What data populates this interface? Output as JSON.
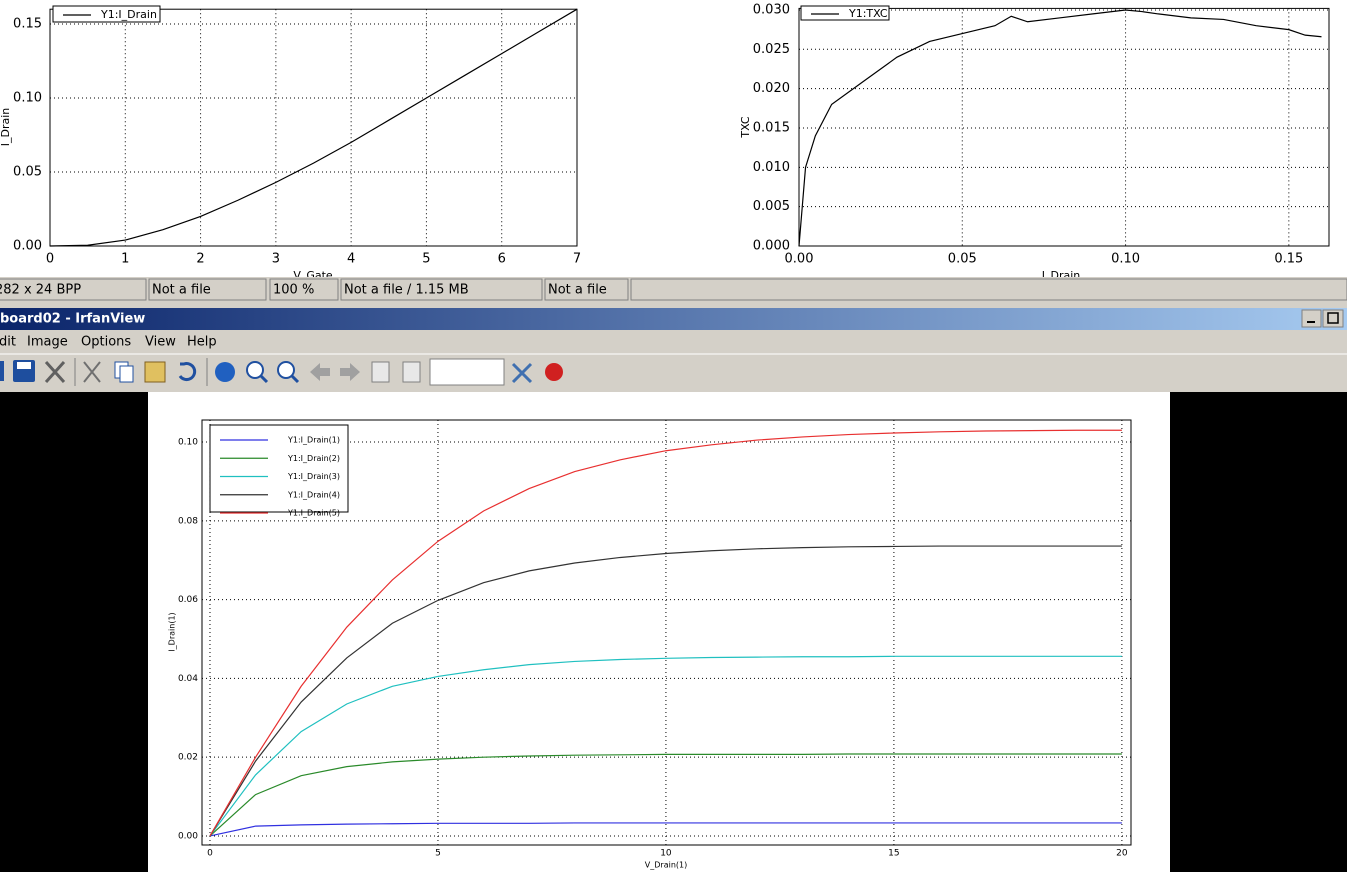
{
  "chart_data": [
    {
      "type": "line",
      "x_label": "V_Gate",
      "y_label": "I_Drain",
      "x": [
        0,
        0.5,
        1,
        1.5,
        2,
        2.5,
        3,
        3.5,
        4,
        4.5,
        5,
        5.5,
        6,
        6.5,
        7
      ],
      "series": [
        {
          "name": "Y1:I_Drain",
          "color": "#000000",
          "values": [
            0,
            0.0005,
            0.004,
            0.011,
            0.02,
            0.031,
            0.043,
            0.056,
            0.07,
            0.085,
            0.1,
            0.115,
            0.13,
            0.145,
            0.16
          ]
        }
      ],
      "xlim": [
        0,
        7
      ],
      "ylim": [
        0,
        0.16
      ],
      "xticks": [
        0,
        1,
        2,
        3,
        4,
        5,
        6,
        7
      ],
      "yticks": [
        {
          "value": 0,
          "label": "0.00"
        },
        {
          "value": 0.05,
          "label": "0.05"
        },
        {
          "value": 0.1,
          "label": "0.10"
        },
        {
          "value": 0.15,
          "label": "0.15"
        }
      ],
      "grid": true,
      "legend": "upper left"
    },
    {
      "type": "line",
      "x_label": "I_Drain",
      "y_label": "TXC",
      "x": [
        0,
        0.002,
        0.005,
        0.01,
        0.02,
        0.03,
        0.04,
        0.05,
        0.06,
        0.065,
        0.07,
        0.08,
        0.09,
        0.1,
        0.105,
        0.11,
        0.12,
        0.13,
        0.14,
        0.15,
        0.155,
        0.16
      ],
      "series": [
        {
          "name": "Y1:TXC",
          "color": "#000000",
          "values": [
            0,
            0.01,
            0.014,
            0.018,
            0.021,
            0.024,
            0.026,
            0.027,
            0.028,
            0.0292,
            0.0285,
            0.029,
            0.0295,
            0.03,
            0.0298,
            0.0295,
            0.029,
            0.0288,
            0.028,
            0.0275,
            0.0268,
            0.0266
          ]
        }
      ],
      "xlim": [
        0,
        0.1623
      ],
      "ylim": [
        0,
        0.0302
      ],
      "xticks": [
        {
          "value": 0,
          "label": "0.00"
        },
        0.05,
        {
          "value": 0.1,
          "label": "0.10"
        },
        0.15
      ],
      "yticks": [
        {
          "value": 0,
          "label": "0.000"
        },
        0.005,
        {
          "value": 0.01,
          "label": "0.010"
        },
        0.015,
        {
          "value": 0.02,
          "label": "0.020"
        },
        0.025,
        {
          "value": 0.03,
          "label": "0.030"
        }
      ],
      "grid": true,
      "legend": "upper left"
    },
    {
      "type": "line",
      "x_label": "V_Drain(1)",
      "y_label": "I_Drain(1)",
      "x": [
        0,
        1,
        2,
        3,
        4,
        5,
        6,
        7,
        8,
        9,
        10,
        11,
        12,
        13,
        14,
        15,
        16,
        17,
        18,
        19,
        20
      ],
      "series": [
        {
          "name": "Y1:I_Drain(1)",
          "color": "#3030e0",
          "values": [
            0,
            0.0025,
            0.0028,
            0.003,
            0.0031,
            0.0032,
            0.0032,
            0.0032,
            0.0033,
            0.0033,
            0.0033,
            0.0033,
            0.0033,
            0.0033,
            0.0033,
            0.0033,
            0.0033,
            0.0033,
            0.0033,
            0.0033,
            0.0033
          ]
        },
        {
          "name": "Y1:I_Drain(2)",
          "color": "#2a8a2a",
          "values": [
            0,
            0.0105,
            0.0153,
            0.0176,
            0.0188,
            0.0195,
            0.02,
            0.0203,
            0.0205,
            0.0206,
            0.0207,
            0.0207,
            0.0207,
            0.0207,
            0.0208,
            0.0208,
            0.0208,
            0.0208,
            0.0208,
            0.0208,
            0.0208
          ]
        },
        {
          "name": "Y1:I_Drain(3)",
          "color": "#20c0c0",
          "values": [
            0,
            0.0155,
            0.0265,
            0.0335,
            0.038,
            0.0405,
            0.0422,
            0.0435,
            0.0443,
            0.0448,
            0.0451,
            0.0453,
            0.0454,
            0.0455,
            0.0455,
            0.0456,
            0.0456,
            0.0456,
            0.0456,
            0.0456,
            0.0456
          ]
        },
        {
          "name": "Y1:I_Drain(4)",
          "color": "#333333",
          "values": [
            0,
            0.019,
            0.034,
            0.0452,
            0.054,
            0.0598,
            0.0643,
            0.0673,
            0.0693,
            0.0707,
            0.0717,
            0.0724,
            0.0729,
            0.0732,
            0.0734,
            0.0735,
            0.0736,
            0.0736,
            0.0736,
            0.0736,
            0.0736
          ]
        },
        {
          "name": "Y1:I_Drain(5)",
          "color": "#e83030",
          "values": [
            0,
            0.02,
            0.038,
            0.053,
            0.065,
            0.0748,
            0.0825,
            0.0882,
            0.0925,
            0.0955,
            0.0978,
            0.0993,
            0.1005,
            0.1013,
            0.1019,
            0.1023,
            0.1026,
            0.1028,
            0.1029,
            0.103,
            0.103
          ]
        }
      ],
      "xlim": [
        -0.175,
        20.2
      ],
      "ylim": [
        -0.0023,
        0.1056
      ],
      "xticks": [
        0,
        5,
        10,
        15,
        20
      ],
      "yticks": [
        {
          "value": 0,
          "label": "0.00"
        },
        {
          "value": 0.02,
          "label": "0.02"
        },
        {
          "value": 0.04,
          "label": "0.04"
        },
        {
          "value": 0.06,
          "label": "0.06"
        },
        {
          "value": 0.08,
          "label": "0.08"
        },
        {
          "value": 0.1,
          "label": "0.10"
        }
      ],
      "grid": true,
      "legend": "upper left"
    }
  ],
  "status_bar": [
    "282 x 24 BPP",
    "Not a file",
    "100 %",
    "Not a file / 1.15 MB",
    "Not a file"
  ],
  "window": {
    "title": "board02 - IrfanView"
  },
  "menu": [
    "dit",
    "Image",
    "Options",
    "View",
    "Help"
  ]
}
